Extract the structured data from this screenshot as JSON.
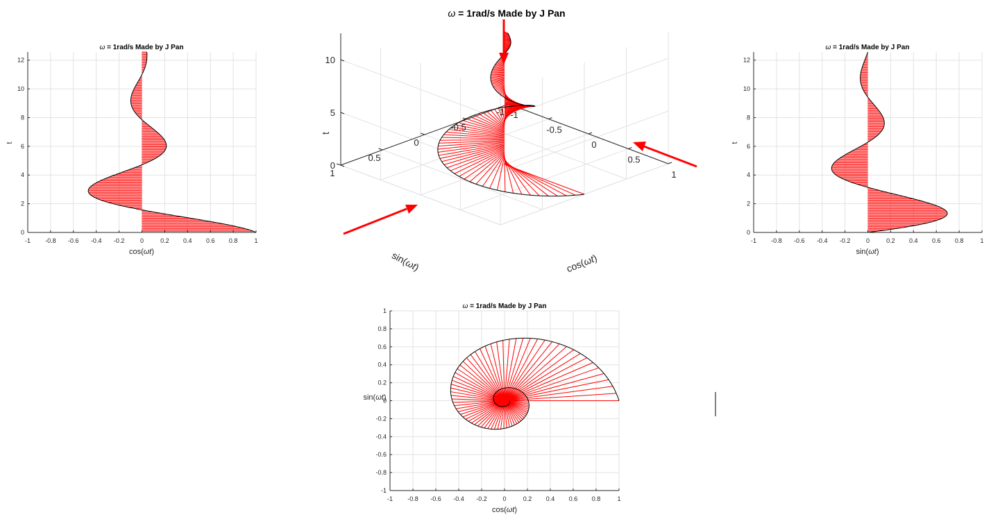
{
  "figure": {
    "omega_rad_per_s": 1,
    "decay": 0.25,
    "t_max": 12.566,
    "fill_color": "#ff0000",
    "curve_color": "#000000",
    "arrow_color": "#ff0000",
    "grid": true
  },
  "chart_data": [
    {
      "id": "left",
      "type": "area",
      "title_omega": "ω",
      "title_rest": " = 1rad/s   Made by J Pan",
      "xlabel_pre": "cos(",
      "xlabel_var": "ωt",
      "xlabel_post": ")",
      "ylabel": "t",
      "xlim": [
        -1,
        1
      ],
      "ylim": [
        0,
        12.566
      ],
      "xticks": [
        -1,
        -0.8,
        -0.6,
        -0.4,
        -0.2,
        0,
        0.2,
        0.4,
        0.6,
        0.8,
        1
      ],
      "yticks": [
        0,
        2,
        4,
        6,
        8,
        10,
        12
      ],
      "function": "exp(-0.25 t) cos(t)"
    },
    {
      "id": "center3d",
      "type": "line",
      "title_omega": "ω",
      "title_rest": " = 1rad/s   Made by J Pan",
      "xlabel_pre": "cos(",
      "xlabel_var": "ωt",
      "xlabel_post": ")",
      "ylabel_pre": "sin(",
      "ylabel_var": "ωt",
      "ylabel_post": ")",
      "zlabel": "t",
      "xticks": [
        "-1",
        "-0.5",
        "0",
        "0.5",
        "1"
      ],
      "yticks": [
        "-1",
        "-0.5",
        "0",
        "0.5",
        "1"
      ],
      "zticks": [
        "0",
        "5",
        "10"
      ],
      "function": "x = exp(-0.25 t) cos(t), y = exp(-0.25 t) sin(t), z = t"
    },
    {
      "id": "right",
      "type": "area",
      "title_omega": "ω",
      "title_rest": " = 1rad/s   Made by J Pan",
      "xlabel_pre": "sin(",
      "xlabel_var": "ωt",
      "xlabel_post": ")",
      "ylabel": "t",
      "xlim": [
        -1,
        1
      ],
      "ylim": [
        0,
        12.566
      ],
      "xticks": [
        -1,
        -0.8,
        -0.6,
        -0.4,
        -0.2,
        0,
        0.2,
        0.4,
        0.6,
        0.8,
        1
      ],
      "yticks": [
        0,
        2,
        4,
        6,
        8,
        10,
        12
      ],
      "function": "exp(-0.25 t) sin(t)"
    },
    {
      "id": "bottom",
      "type": "line",
      "title_omega": "ω",
      "title_rest": " = 1rad/s   Made by J Pan",
      "xlabel_pre": "cos(",
      "xlabel_var": "ωt",
      "xlabel_post": ")",
      "ylabel_pre": "sin(",
      "ylabel_var": "ωt",
      "ylabel_post": ")",
      "xlim": [
        -1,
        1
      ],
      "ylim": [
        -1,
        1
      ],
      "xticks": [
        -1,
        -0.8,
        -0.6,
        -0.4,
        -0.2,
        0,
        0.2,
        0.4,
        0.6,
        0.8,
        1
      ],
      "yticks": [
        -1,
        -0.8,
        -0.6,
        -0.4,
        -0.2,
        0,
        0.2,
        0.4,
        0.6,
        0.8,
        1
      ],
      "function": "x = exp(-0.25 t) cos(t), y = exp(-0.25 t) sin(t)"
    }
  ]
}
